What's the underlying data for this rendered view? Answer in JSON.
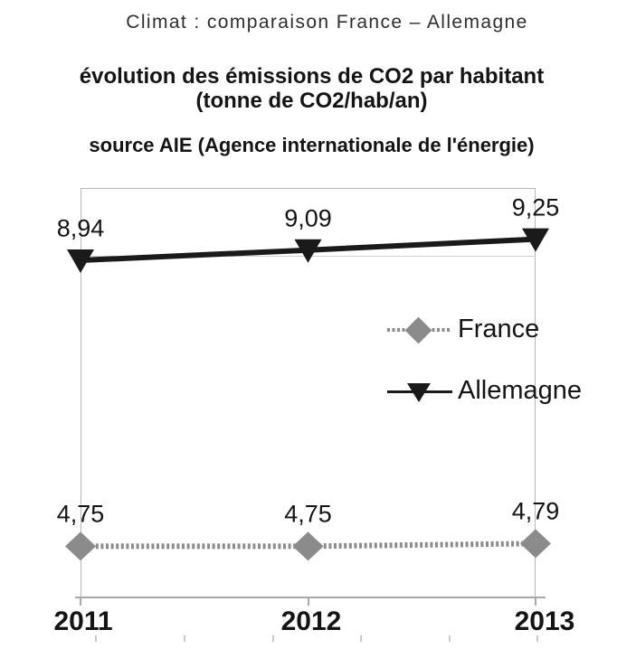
{
  "page": {
    "top_title": "Climat : comparaison France – Allemagne",
    "heading_line1": "évolution des émissions de CO2 par habitant",
    "heading_line2": "(tonne de CO2/hab/an)",
    "source_line": "source AIE (Agence internationale de l'énergie)"
  },
  "chart_data": {
    "type": "line",
    "title": "évolution des émissions de CO2 par habitant (tonne de CO2/hab/an)",
    "subtitle": "source AIE (Agence internationale de l'énergie)",
    "categories": [
      "2011",
      "2012",
      "2013"
    ],
    "series": [
      {
        "name": "France",
        "values": [
          4.75,
          4.75,
          4.79
        ],
        "labels": [
          "4,75",
          "4,75",
          "4,79"
        ],
        "color": "#8b8b8b",
        "marker": "diamond",
        "line_style": "dotted"
      },
      {
        "name": "Allemagne",
        "values": [
          8.94,
          9.09,
          9.25
        ],
        "labels": [
          "8,94",
          "9,09",
          "9,25"
        ],
        "color": "#1a1a1a",
        "marker": "triangle-down",
        "line_style": "solid"
      }
    ],
    "xlabel": "",
    "ylabel": "",
    "ylim": [
      4,
      10
    ],
    "grid": {
      "horizontal_lines": [
        9
      ],
      "vertical_lines": "plot borders only"
    },
    "legend_position": "center-right inside plot",
    "data_labels_shown": true
  },
  "colors": {
    "france": "#8b8b8b",
    "allemagne": "#1a1a1a",
    "plot_border": "#b7b7b7",
    "axis": "#a8a8a8",
    "gridline": "#cfcfcf"
  }
}
